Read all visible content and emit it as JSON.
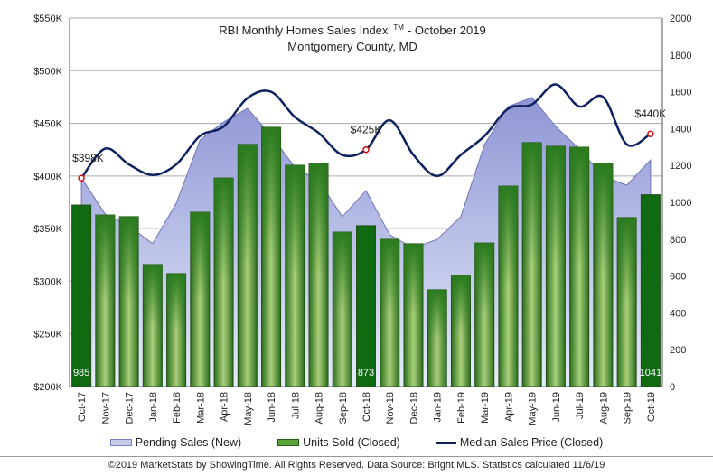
{
  "chart_data": {
    "type": "combo",
    "title": "RBI Monthly Homes Sales Index",
    "title_mark": "TM",
    "title_suffix": "-  October 2019",
    "subtitle": "Montgomery County, MD",
    "categories": [
      "Oct-17",
      "Nov-17",
      "Dec-17",
      "Jan-18",
      "Feb-18",
      "Mar-18",
      "Apr-18",
      "May-18",
      "Jun-18",
      "Jul-18",
      "Aug-18",
      "Sep-18",
      "Oct-18",
      "Nov-18",
      "Dec-18",
      "Jan-19",
      "Feb-19",
      "Mar-19",
      "Apr-19",
      "May-19",
      "Jun-19",
      "Jul-19",
      "Aug-19",
      "Sep-19",
      "Oct-19"
    ],
    "series": [
      {
        "name": "Pending Sales (New)",
        "type": "area",
        "axis": "right",
        "values": [
          1132,
          936,
          873,
          775,
          995,
          1338,
          1436,
          1510,
          1363,
          1191,
          1118,
          922,
          1064,
          824,
          750,
          799,
          922,
          1314,
          1520,
          1569,
          1412,
          1289,
          1142,
          1093,
          1230
        ]
      },
      {
        "name": "Units Sold (Closed)",
        "type": "bar",
        "axis": "right",
        "values": [
          985,
          931,
          922,
          662,
          613,
          946,
          1132,
          1314,
          1407,
          1201,
          1211,
          838,
          873,
          799,
          775,
          525,
          603,
          779,
          1088,
          1324,
          1304,
          1299,
          1211,
          917,
          1041
        ]
      },
      {
        "name": "Median Sales Price (Closed)",
        "type": "line",
        "axis": "left",
        "values": [
          398,
          426,
          411,
          401,
          411,
          438,
          447,
          474,
          480,
          456,
          441,
          420,
          425,
          453,
          420,
          400,
          420,
          438,
          464,
          468,
          487,
          466,
          475,
          430,
          440
        ]
      }
    ],
    "bar_labels": [
      {
        "index": 0,
        "text": "985"
      },
      {
        "index": 12,
        "text": "873"
      },
      {
        "index": 24,
        "text": "1041"
      }
    ],
    "line_labels": [
      {
        "index": 0,
        "text": "$398K"
      },
      {
        "index": 12,
        "text": "$425K"
      },
      {
        "index": 24,
        "text": "$440K"
      }
    ],
    "left_axis": {
      "ylim": [
        200,
        550
      ],
      "ticks": [
        "$200K",
        "$250K",
        "$300K",
        "$350K",
        "$400K",
        "$450K",
        "$500K",
        "$550K"
      ]
    },
    "right_axis": {
      "ylim": [
        0,
        2000
      ],
      "ticks": [
        "0",
        "200",
        "400",
        "600",
        "800",
        "1000",
        "1200",
        "1400",
        "1600",
        "1800",
        "2000"
      ]
    },
    "grid": true,
    "legend_position": "bottom",
    "colors": {
      "area": "#9fa6dc",
      "bar": "#3d8a2a",
      "bar_highlight": "#0f6a12",
      "line": "#0d2060",
      "marker": "#cc1111"
    }
  },
  "footer": "©2019 MarketStats by ShowingTime. All Rights Reserved. Data Source: Bright MLS. Statistics calculated 11/6/19"
}
